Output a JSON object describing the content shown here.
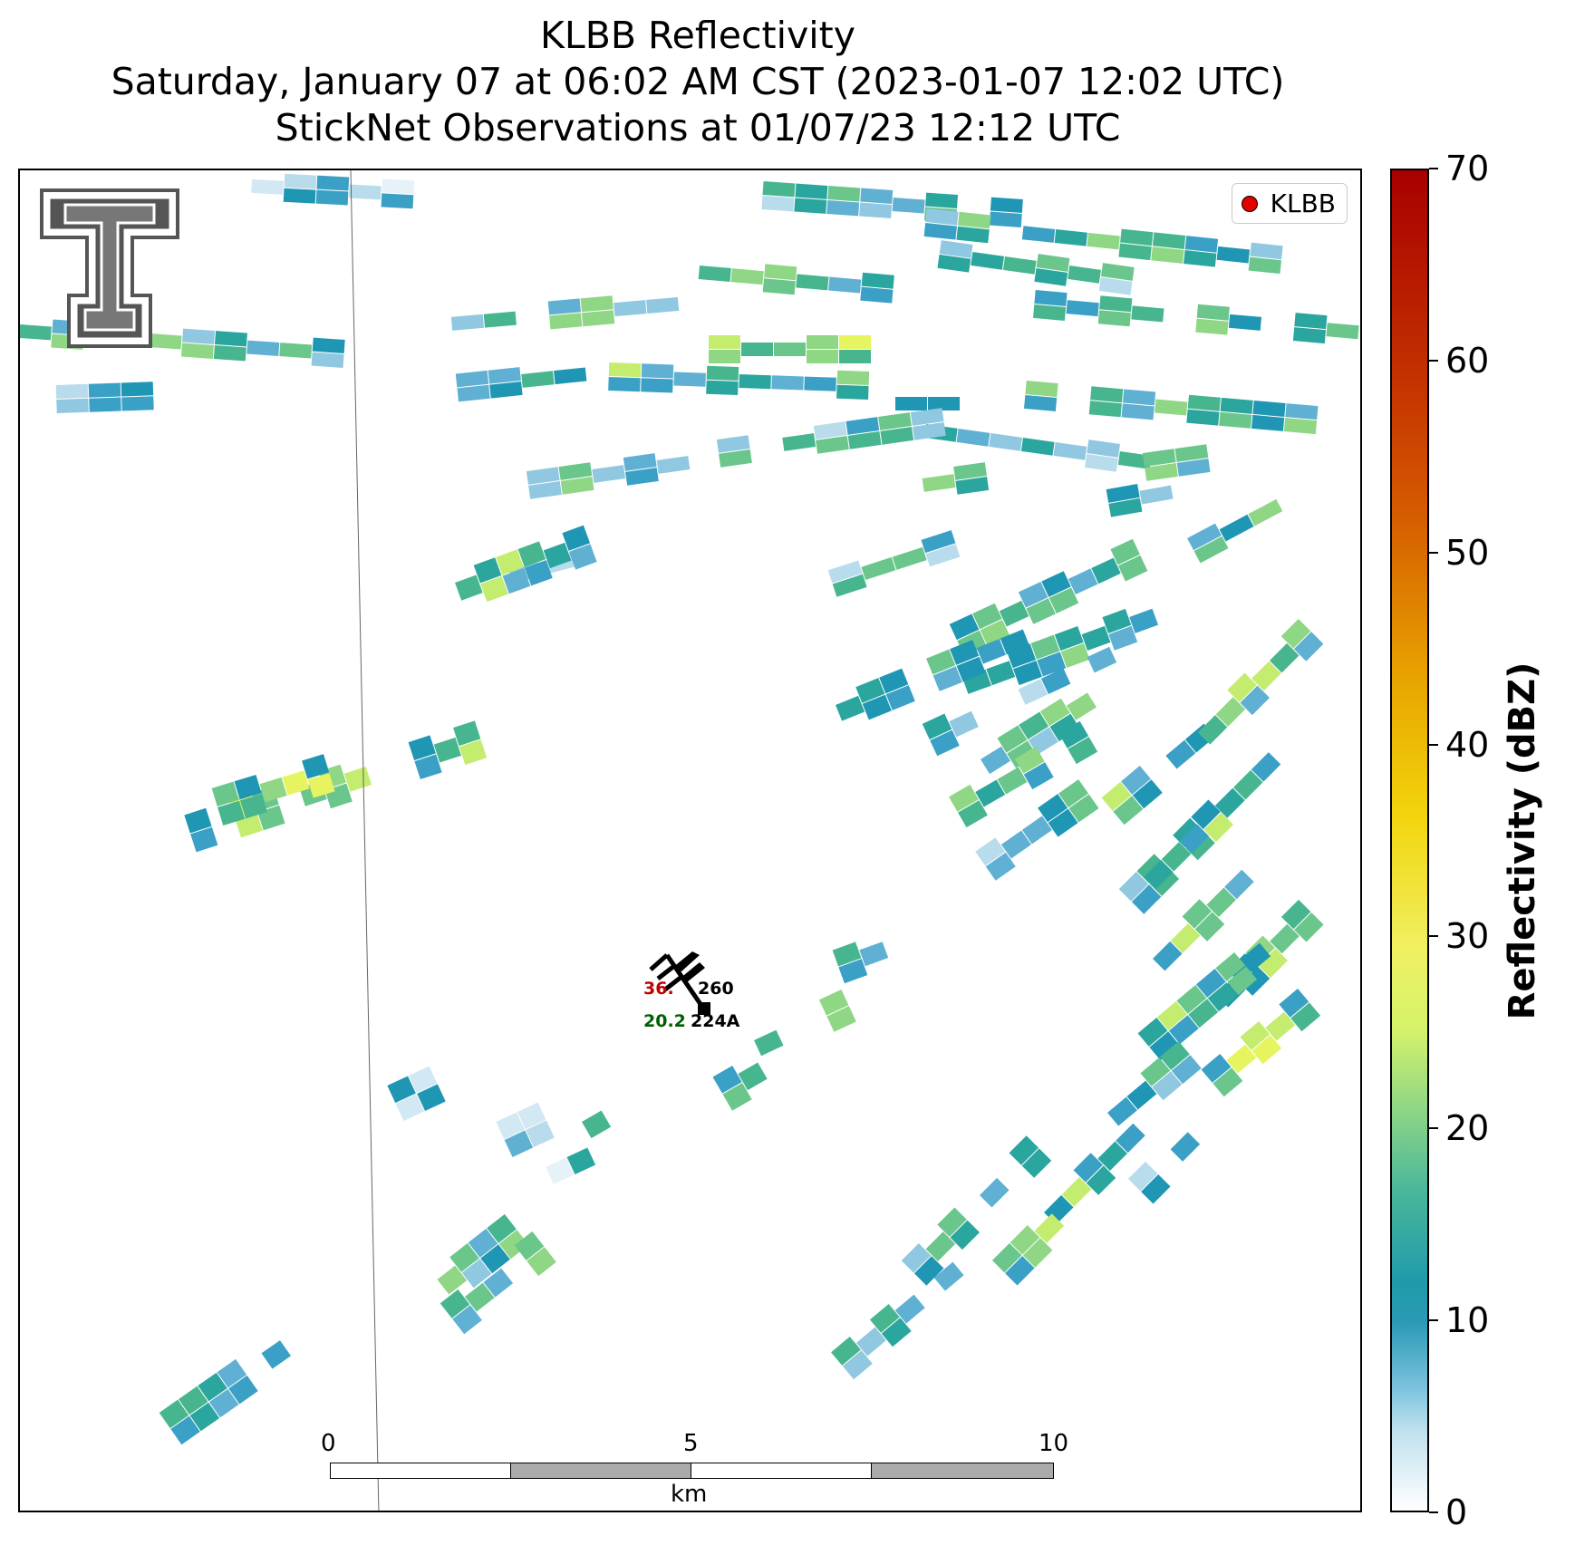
{
  "header": {
    "line1": "KLBB Reflectivity",
    "line2": "Saturday, January 07 at 06:02 AM CST (2023-01-07 12:02 UTC)",
    "line3": "StickNet Observations at 01/07/23 12:12 UTC"
  },
  "legend": {
    "label": "KLBB"
  },
  "station": {
    "temperature": "36.",
    "dewpoint": "20.2",
    "pressure": "260",
    "id": "224A"
  },
  "scale_bar": {
    "labels": [
      "0",
      "5",
      "10"
    ],
    "unit": "km"
  },
  "colorbar": {
    "title": "Reflectivity (dBZ)",
    "ticks": [
      "0",
      "10",
      "20",
      "30",
      "40",
      "50",
      "60",
      "70"
    ],
    "min": 0,
    "max": 70
  },
  "logo": {
    "name": "texas-tech-double-t-logo"
  }
}
